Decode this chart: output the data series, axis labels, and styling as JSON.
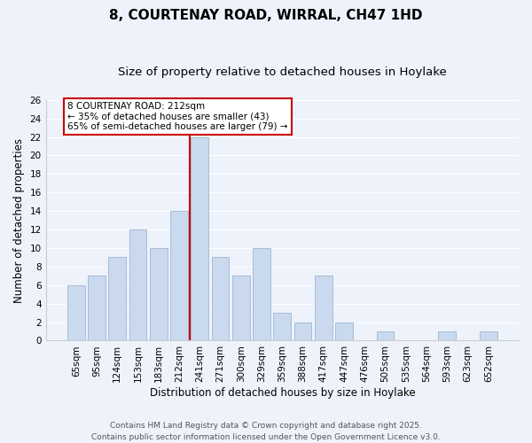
{
  "title": "8, COURTENAY ROAD, WIRRAL, CH47 1HD",
  "subtitle": "Size of property relative to detached houses in Hoylake",
  "xlabel": "Distribution of detached houses by size in Hoylake",
  "ylabel": "Number of detached properties",
  "bar_labels": [
    "65sqm",
    "95sqm",
    "124sqm",
    "153sqm",
    "183sqm",
    "212sqm",
    "241sqm",
    "271sqm",
    "300sqm",
    "329sqm",
    "359sqm",
    "388sqm",
    "417sqm",
    "447sqm",
    "476sqm",
    "505sqm",
    "535sqm",
    "564sqm",
    "593sqm",
    "623sqm",
    "652sqm"
  ],
  "bar_values": [
    6,
    7,
    9,
    12,
    10,
    14,
    22,
    9,
    7,
    10,
    3,
    2,
    7,
    2,
    0,
    1,
    0,
    0,
    1,
    0,
    1
  ],
  "bar_color": "#c9d9ee",
  "bar_edge_color": "#a8bdd4",
  "vline_color": "#cc0000",
  "annotation_title": "8 COURTENAY ROAD: 212sqm",
  "annotation_line1": "← 35% of detached houses are smaller (43)",
  "annotation_line2": "65% of semi-detached houses are larger (79) →",
  "annotation_box_facecolor": "#ffffff",
  "annotation_box_edgecolor": "#cc0000",
  "ylim": [
    0,
    26
  ],
  "yticks": [
    0,
    2,
    4,
    6,
    8,
    10,
    12,
    14,
    16,
    18,
    20,
    22,
    24,
    26
  ],
  "footer1": "Contains HM Land Registry data © Crown copyright and database right 2025.",
  "footer2": "Contains public sector information licensed under the Open Government Licence v3.0.",
  "background_color": "#eef2fb",
  "grid_color": "#ffffff",
  "title_fontsize": 11,
  "subtitle_fontsize": 9.5,
  "axis_label_fontsize": 8.5,
  "tick_fontsize": 7.5,
  "annotation_fontsize": 7.5,
  "footer_fontsize": 6.5
}
